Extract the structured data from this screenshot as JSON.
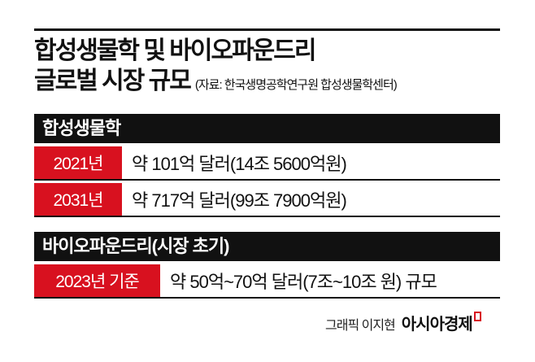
{
  "title": {
    "line1": "합성생물학 및 바이오파운드리",
    "line2": "글로벌 시장 규모",
    "source": "(자료: 한국생명공학연구원 합성생물학센터)"
  },
  "sections": [
    {
      "header": "합성생물학",
      "rows": [
        {
          "label": "2021년",
          "value": "약 101억 달러(14조 5600억원)"
        },
        {
          "label": "2031년",
          "value": "약 717억 달러(99조 7900억원)"
        }
      ]
    },
    {
      "header": "바이오파운드리(시장 초기)",
      "rows": [
        {
          "label": "2023년 기준",
          "value": "약 50억~70억 달러(7조~10조 원) 규모"
        }
      ]
    }
  ],
  "footer": {
    "credit": "그래픽 이지현",
    "brand": "아시아경제"
  },
  "colors": {
    "accent": "#d8111f",
    "bar": "#111111"
  }
}
